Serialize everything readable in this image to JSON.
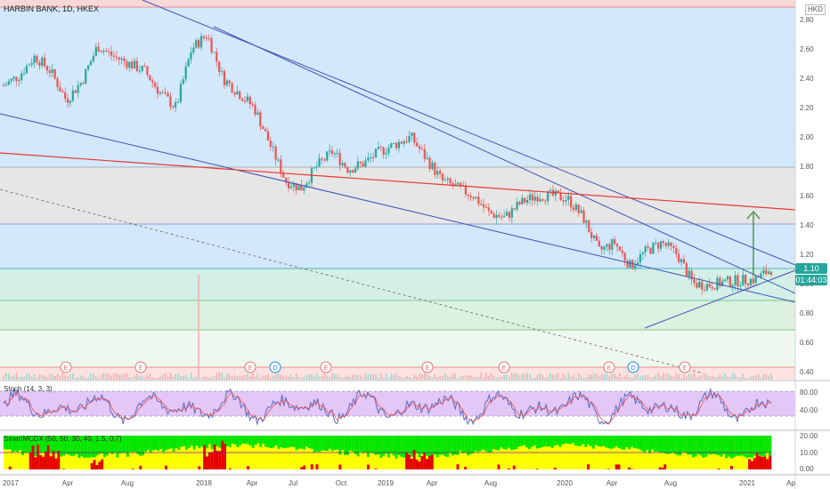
{
  "header": {
    "symbol_title": "HARBIN BANK, 1D, HKEX",
    "currency": "HKD"
  },
  "price_tags": {
    "last_price": "1.10",
    "countdown": "01:44:03"
  },
  "indicators": {
    "stoch_title": "Stoch (14, 3, 3)",
    "smart_mcdx_title": "SmartMCDX (50, 50, 30, 40, 1.5, 0.7)"
  },
  "event_markers": [
    "E",
    "E",
    "E",
    "D",
    "E",
    "E",
    "E",
    "E",
    "D",
    "E"
  ],
  "colors": {
    "bg_top_band": "#f8d7d7",
    "bg_blue_band": "#d3e8fb",
    "bg_gray_band": "#e6e6e6",
    "bg_green_band": "#dcf1e0",
    "bg_pink_bottom": "#fde2e2",
    "candle_up": "#26a69a",
    "candle_down": "#ef5350",
    "channel_line": "#3f51b5",
    "red_line": "#e53935",
    "arrow": "#2e7d32",
    "stoch_band": "#e2c7f7",
    "mcdx_green": "#00e600",
    "mcdx_yellow": "#ffff00",
    "mcdx_red": "#e60000"
  },
  "chart_data": {
    "type": "candlestick",
    "y_ticks": [
      "2.80",
      "2.60",
      "2.40",
      "2.20",
      "2.00",
      "1.80",
      "1.60",
      "1.40",
      "1.20",
      "1.00",
      "0.80",
      "0.60",
      "0.40"
    ],
    "x_ticks": [
      "2017",
      "Apr",
      "Aug",
      "2018",
      "Apr",
      "Jul",
      "Oct",
      "2019",
      "Apr",
      "Aug",
      "2020",
      "Apr",
      "Aug",
      "2021",
      "Ap"
    ],
    "stoch_ticks": [
      "80.00",
      "40.00"
    ],
    "mcdx_ticks": [
      "20.00",
      "10.00",
      "0.00"
    ],
    "ylim": [
      0.38,
      2.88
    ],
    "close_path": [
      [
        "2017-01",
        2.35
      ],
      [
        "2017-02",
        2.42
      ],
      [
        "2017-03",
        2.55
      ],
      [
        "2017-04",
        2.45
      ],
      [
        "2017-05",
        2.25
      ],
      [
        "2017-06",
        2.38
      ],
      [
        "2017-07",
        2.62
      ],
      [
        "2017-08",
        2.55
      ],
      [
        "2017-09",
        2.5
      ],
      [
        "2017-10",
        2.45
      ],
      [
        "2017-11",
        2.3
      ],
      [
        "2017-12",
        2.2
      ],
      [
        "2018-01",
        2.6
      ],
      [
        "2018-02",
        2.7
      ],
      [
        "2018-03",
        2.4
      ],
      [
        "2018-04",
        2.3
      ],
      [
        "2018-05",
        2.2
      ],
      [
        "2018-06",
        1.95
      ],
      [
        "2018-07",
        1.7
      ],
      [
        "2018-08",
        1.65
      ],
      [
        "2018-09",
        1.8
      ],
      [
        "2018-10",
        1.9
      ],
      [
        "2018-11",
        1.78
      ],
      [
        "2018-12",
        1.82
      ],
      [
        "2019-01",
        1.9
      ],
      [
        "2019-02",
        1.95
      ],
      [
        "2019-03",
        2.0
      ],
      [
        "2019-04",
        1.85
      ],
      [
        "2019-05",
        1.7
      ],
      [
        "2019-06",
        1.65
      ],
      [
        "2019-07",
        1.6
      ],
      [
        "2019-08",
        1.48
      ],
      [
        "2019-09",
        1.45
      ],
      [
        "2019-10",
        1.55
      ],
      [
        "2019-11",
        1.6
      ],
      [
        "2019-12",
        1.6
      ],
      [
        "2020-01",
        1.58
      ],
      [
        "2020-02",
        1.45
      ],
      [
        "2020-03",
        1.22
      ],
      [
        "2020-04",
        1.28
      ],
      [
        "2020-05",
        1.12
      ],
      [
        "2020-06",
        1.22
      ],
      [
        "2020-07",
        1.28
      ],
      [
        "2020-08",
        1.2
      ],
      [
        "2020-09",
        1.0
      ],
      [
        "2020-10",
        0.99
      ],
      [
        "2020-11",
        1.01
      ],
      [
        "2020-12",
        1.02
      ],
      [
        "2021-01",
        1.03
      ],
      [
        "2021-02",
        1.1
      ]
    ],
    "horizontal_levels": [
      2.88,
      1.8,
      1.42,
      1.1,
      0.92,
      0.7,
      0.42
    ],
    "arrow_target": 1.5,
    "last_price": 1.1
  }
}
